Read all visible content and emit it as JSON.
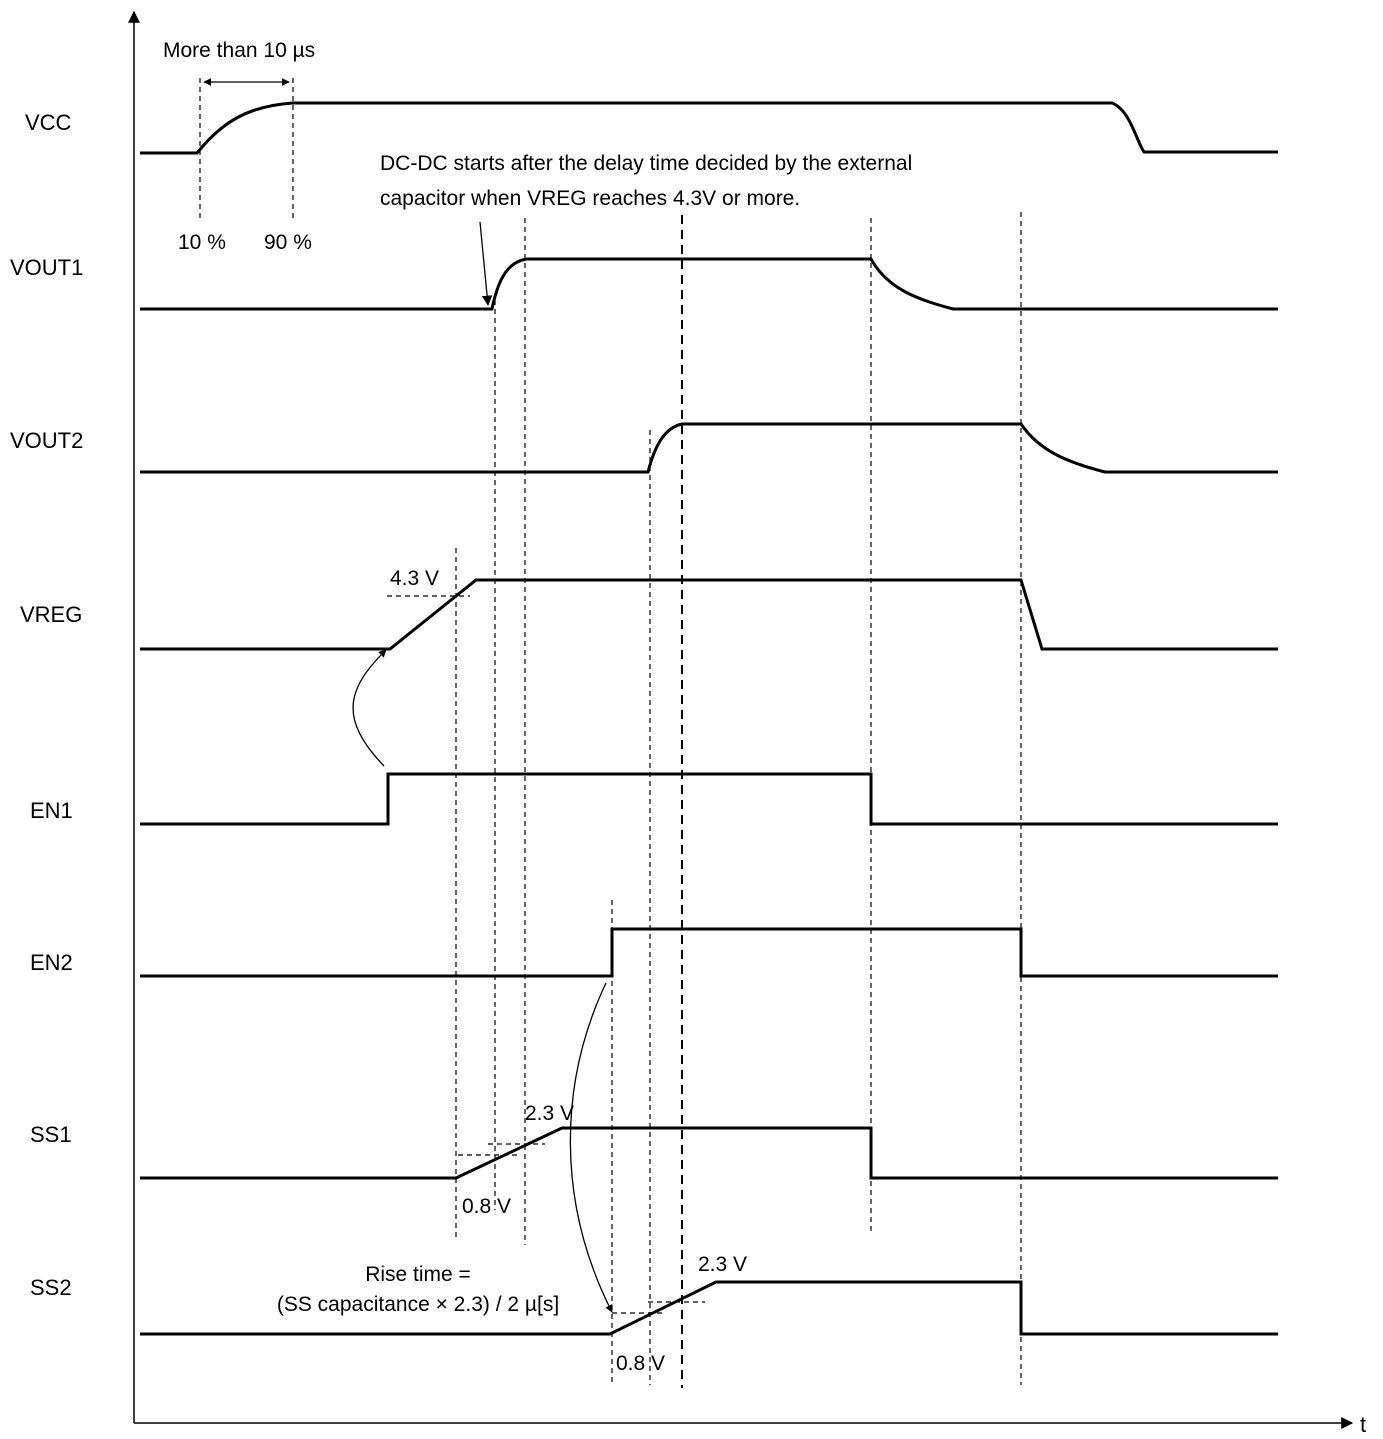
{
  "axis": {
    "time_label": "t"
  },
  "signals": {
    "vcc": "VCC",
    "vout1": "VOUT1",
    "vout2": "VOUT2",
    "vreg": "VREG",
    "en1": "EN1",
    "en2": "EN2",
    "ss1": "SS1",
    "ss2": "SS2"
  },
  "annotations": {
    "vcc_min_rise": "More than 10 µs",
    "vcc_10pct": "10 %",
    "vcc_90pct": "90 %",
    "dcdc_note_line1": "DC-DC starts after the delay time decided by the external",
    "dcdc_note_line2": "capacitor when VREG reaches 4.3V or more.",
    "vreg_threshold": "4.3 V",
    "ss1_high": "2.3 V",
    "ss1_low": "0.8 V",
    "ss2_high": "2.3 V",
    "ss2_low": "0.8 V",
    "rise_time_line1": "Rise time =",
    "rise_time_line2": "(SS capacitance × 2.3) / 2 µ[s]"
  }
}
